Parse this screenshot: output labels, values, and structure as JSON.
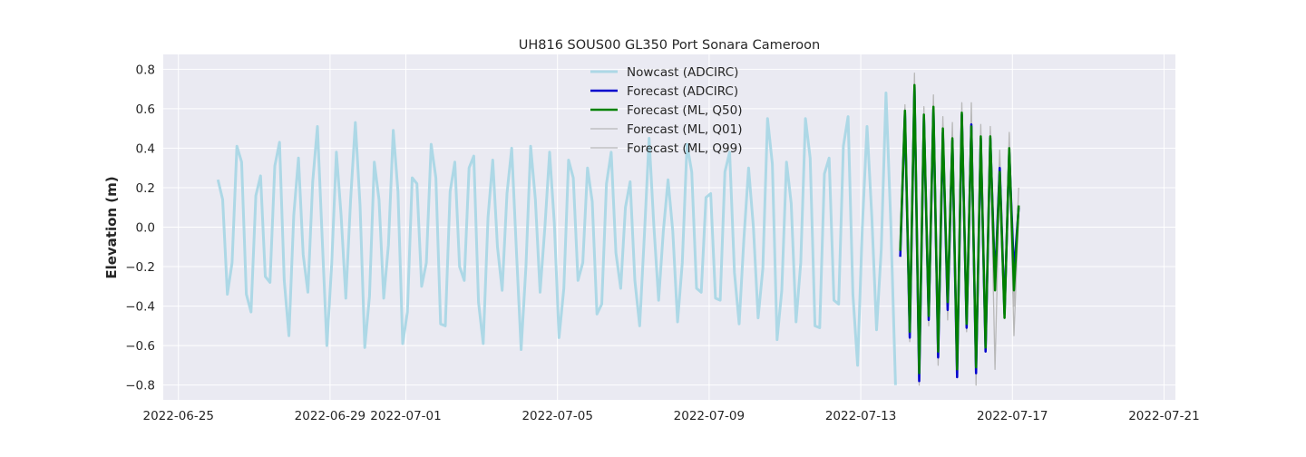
{
  "chart_data": {
    "type": "line",
    "title": "UH816 SOUS00 GL350 Port Sonara Cameroon",
    "xlabel": "",
    "ylabel": "Elevation (m)",
    "xlim": [
      "2022-06-25",
      "2022-07-21"
    ],
    "ylim": [
      -0.875,
      0.875
    ],
    "x_ticks": [
      "2022-06-25",
      "2022-06-29",
      "2022-07-01",
      "2022-07-05",
      "2022-07-09",
      "2022-07-13",
      "2022-07-17",
      "2022-07-21"
    ],
    "y_ticks": [
      0.8,
      0.6,
      0.4,
      0.2,
      0.0,
      -0.2,
      -0.4,
      -0.6,
      -0.8
    ],
    "y_tick_labels": [
      "0.8",
      "0.6",
      "0.4",
      "0.2",
      "0.0",
      "−0.2",
      "−0.4",
      "−0.6",
      "−0.8"
    ],
    "grid": true,
    "legend_position": "top-center",
    "series": [
      {
        "name": "Nowcast (ADCIRC)",
        "color": "#add8e6",
        "start": "2022-06-26T01:00",
        "step_hours": 3,
        "values": [
          0.24,
          0.14,
          -0.34,
          -0.18,
          0.41,
          0.33,
          -0.34,
          -0.43,
          0.16,
          0.26,
          -0.25,
          -0.28,
          0.31,
          0.43,
          -0.27,
          -0.55,
          0.06,
          0.35,
          -0.14,
          -0.33,
          0.23,
          0.51,
          -0.05,
          -0.6,
          -0.19,
          0.38,
          0.06,
          -0.36,
          0.14,
          0.53,
          0.11,
          -0.61,
          -0.35,
          0.33,
          0.14,
          -0.36,
          -0.09,
          0.49,
          0.18,
          -0.59,
          -0.43,
          0.25,
          0.22,
          -0.3,
          -0.18,
          0.42,
          0.25,
          -0.49,
          -0.5,
          0.18,
          0.33,
          -0.2,
          -0.27,
          0.3,
          0.36,
          -0.38,
          -0.59,
          0.05,
          0.34,
          -0.1,
          -0.32,
          0.17,
          0.4,
          -0.12,
          -0.62,
          -0.2,
          0.41,
          0.14,
          -0.33,
          0.0,
          0.38,
          0.02,
          -0.56,
          -0.31,
          0.34,
          0.25,
          -0.27,
          -0.18,
          0.3,
          0.13,
          -0.44,
          -0.39,
          0.22,
          0.38,
          -0.13,
          -0.31,
          0.1,
          0.23,
          -0.27,
          -0.5,
          -0.04,
          0.45,
          0.01,
          -0.37,
          -0.02,
          0.24,
          -0.02,
          -0.48,
          -0.18,
          0.42,
          0.28,
          -0.31,
          -0.33,
          0.15,
          0.17,
          -0.36,
          -0.37,
          0.28,
          0.38,
          -0.23,
          -0.49,
          -0.06,
          0.3,
          0.0,
          -0.46,
          -0.21,
          0.55,
          0.32,
          -0.57,
          -0.32,
          0.33,
          0.12,
          -0.48,
          -0.18,
          0.55,
          0.35,
          -0.5,
          -0.51,
          0.27,
          0.35,
          -0.37,
          -0.39,
          0.41,
          0.56,
          -0.34,
          -0.7,
          0.0,
          0.51,
          0.05,
          -0.52,
          -0.11,
          0.68,
          0.02,
          -0.8
        ]
      },
      {
        "name": "Forecast (ADCIRC)",
        "color": "#0000cd",
        "start": "2022-07-14T01:00",
        "step_hours": 3,
        "values": [
          -0.15,
          0.58,
          -0.56,
          0.71,
          -0.78,
          0.56,
          -0.47,
          0.6,
          -0.66,
          0.48,
          -0.42,
          0.44,
          -0.76,
          0.57,
          -0.51,
          0.52,
          -0.74,
          0.45,
          -0.63,
          0.45,
          -0.28,
          0.3,
          -0.44,
          0.38,
          -0.23,
          0.1
        ]
      },
      {
        "name": "Forecast (ML, Q50)",
        "color": "#008000",
        "start": "2022-07-14T01:00",
        "step_hours": 3,
        "values": [
          -0.12,
          0.59,
          -0.53,
          0.72,
          -0.74,
          0.57,
          -0.45,
          0.61,
          -0.63,
          0.5,
          -0.38,
          0.45,
          -0.72,
          0.58,
          -0.49,
          0.51,
          -0.71,
          0.46,
          -0.61,
          0.46,
          -0.32,
          0.28,
          -0.46,
          0.4,
          -0.32,
          0.11
        ]
      },
      {
        "name": "Forecast (ML, Q01)",
        "color": "#b8b8b8",
        "start": "2022-07-14T01:00",
        "step_hours": 3,
        "values": [
          -0.1,
          0.56,
          -0.58,
          0.69,
          -0.8,
          0.54,
          -0.5,
          0.58,
          -0.7,
          0.45,
          -0.47,
          0.42,
          -0.75,
          0.55,
          -0.53,
          0.49,
          -0.8,
          0.43,
          -0.54,
          0.42,
          -0.72,
          0.24,
          -0.43,
          0.36,
          -0.55,
          0.06
        ]
      },
      {
        "name": "Forecast (ML, Q99)",
        "color": "#b8b8b8",
        "start": "2022-07-14T01:00",
        "step_hours": 3,
        "values": [
          -0.05,
          0.62,
          -0.48,
          0.78,
          -0.68,
          0.61,
          -0.4,
          0.67,
          -0.58,
          0.56,
          -0.33,
          0.53,
          -0.68,
          0.63,
          -0.45,
          0.63,
          -0.66,
          0.52,
          -0.51,
          0.51,
          -0.26,
          0.39,
          -0.35,
          0.48,
          -0.4,
          0.2
        ]
      }
    ]
  }
}
